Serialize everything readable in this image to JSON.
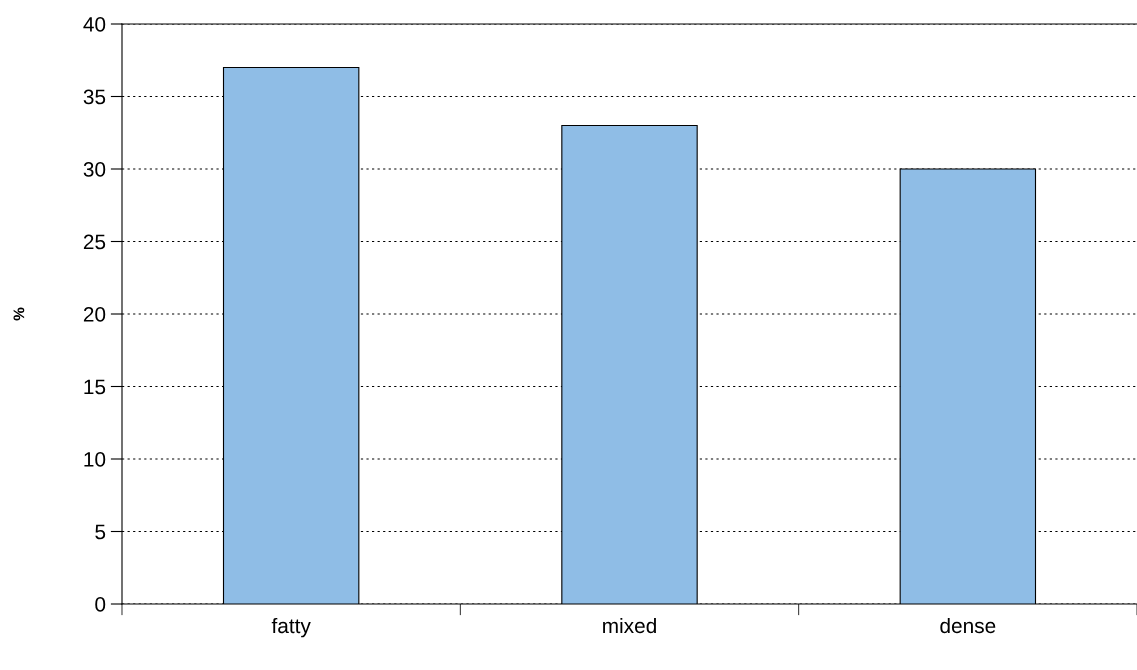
{
  "chart_data": {
    "type": "bar",
    "ylabel": "%",
    "categories": [
      "fatty",
      "mixed",
      "dense"
    ],
    "values": [
      37,
      33,
      30
    ],
    "color": "#8fbde6",
    "ylim": [
      0,
      40
    ],
    "yticks": [
      0,
      5,
      10,
      15,
      20,
      25,
      30,
      35,
      40
    ],
    "grid": "y"
  }
}
